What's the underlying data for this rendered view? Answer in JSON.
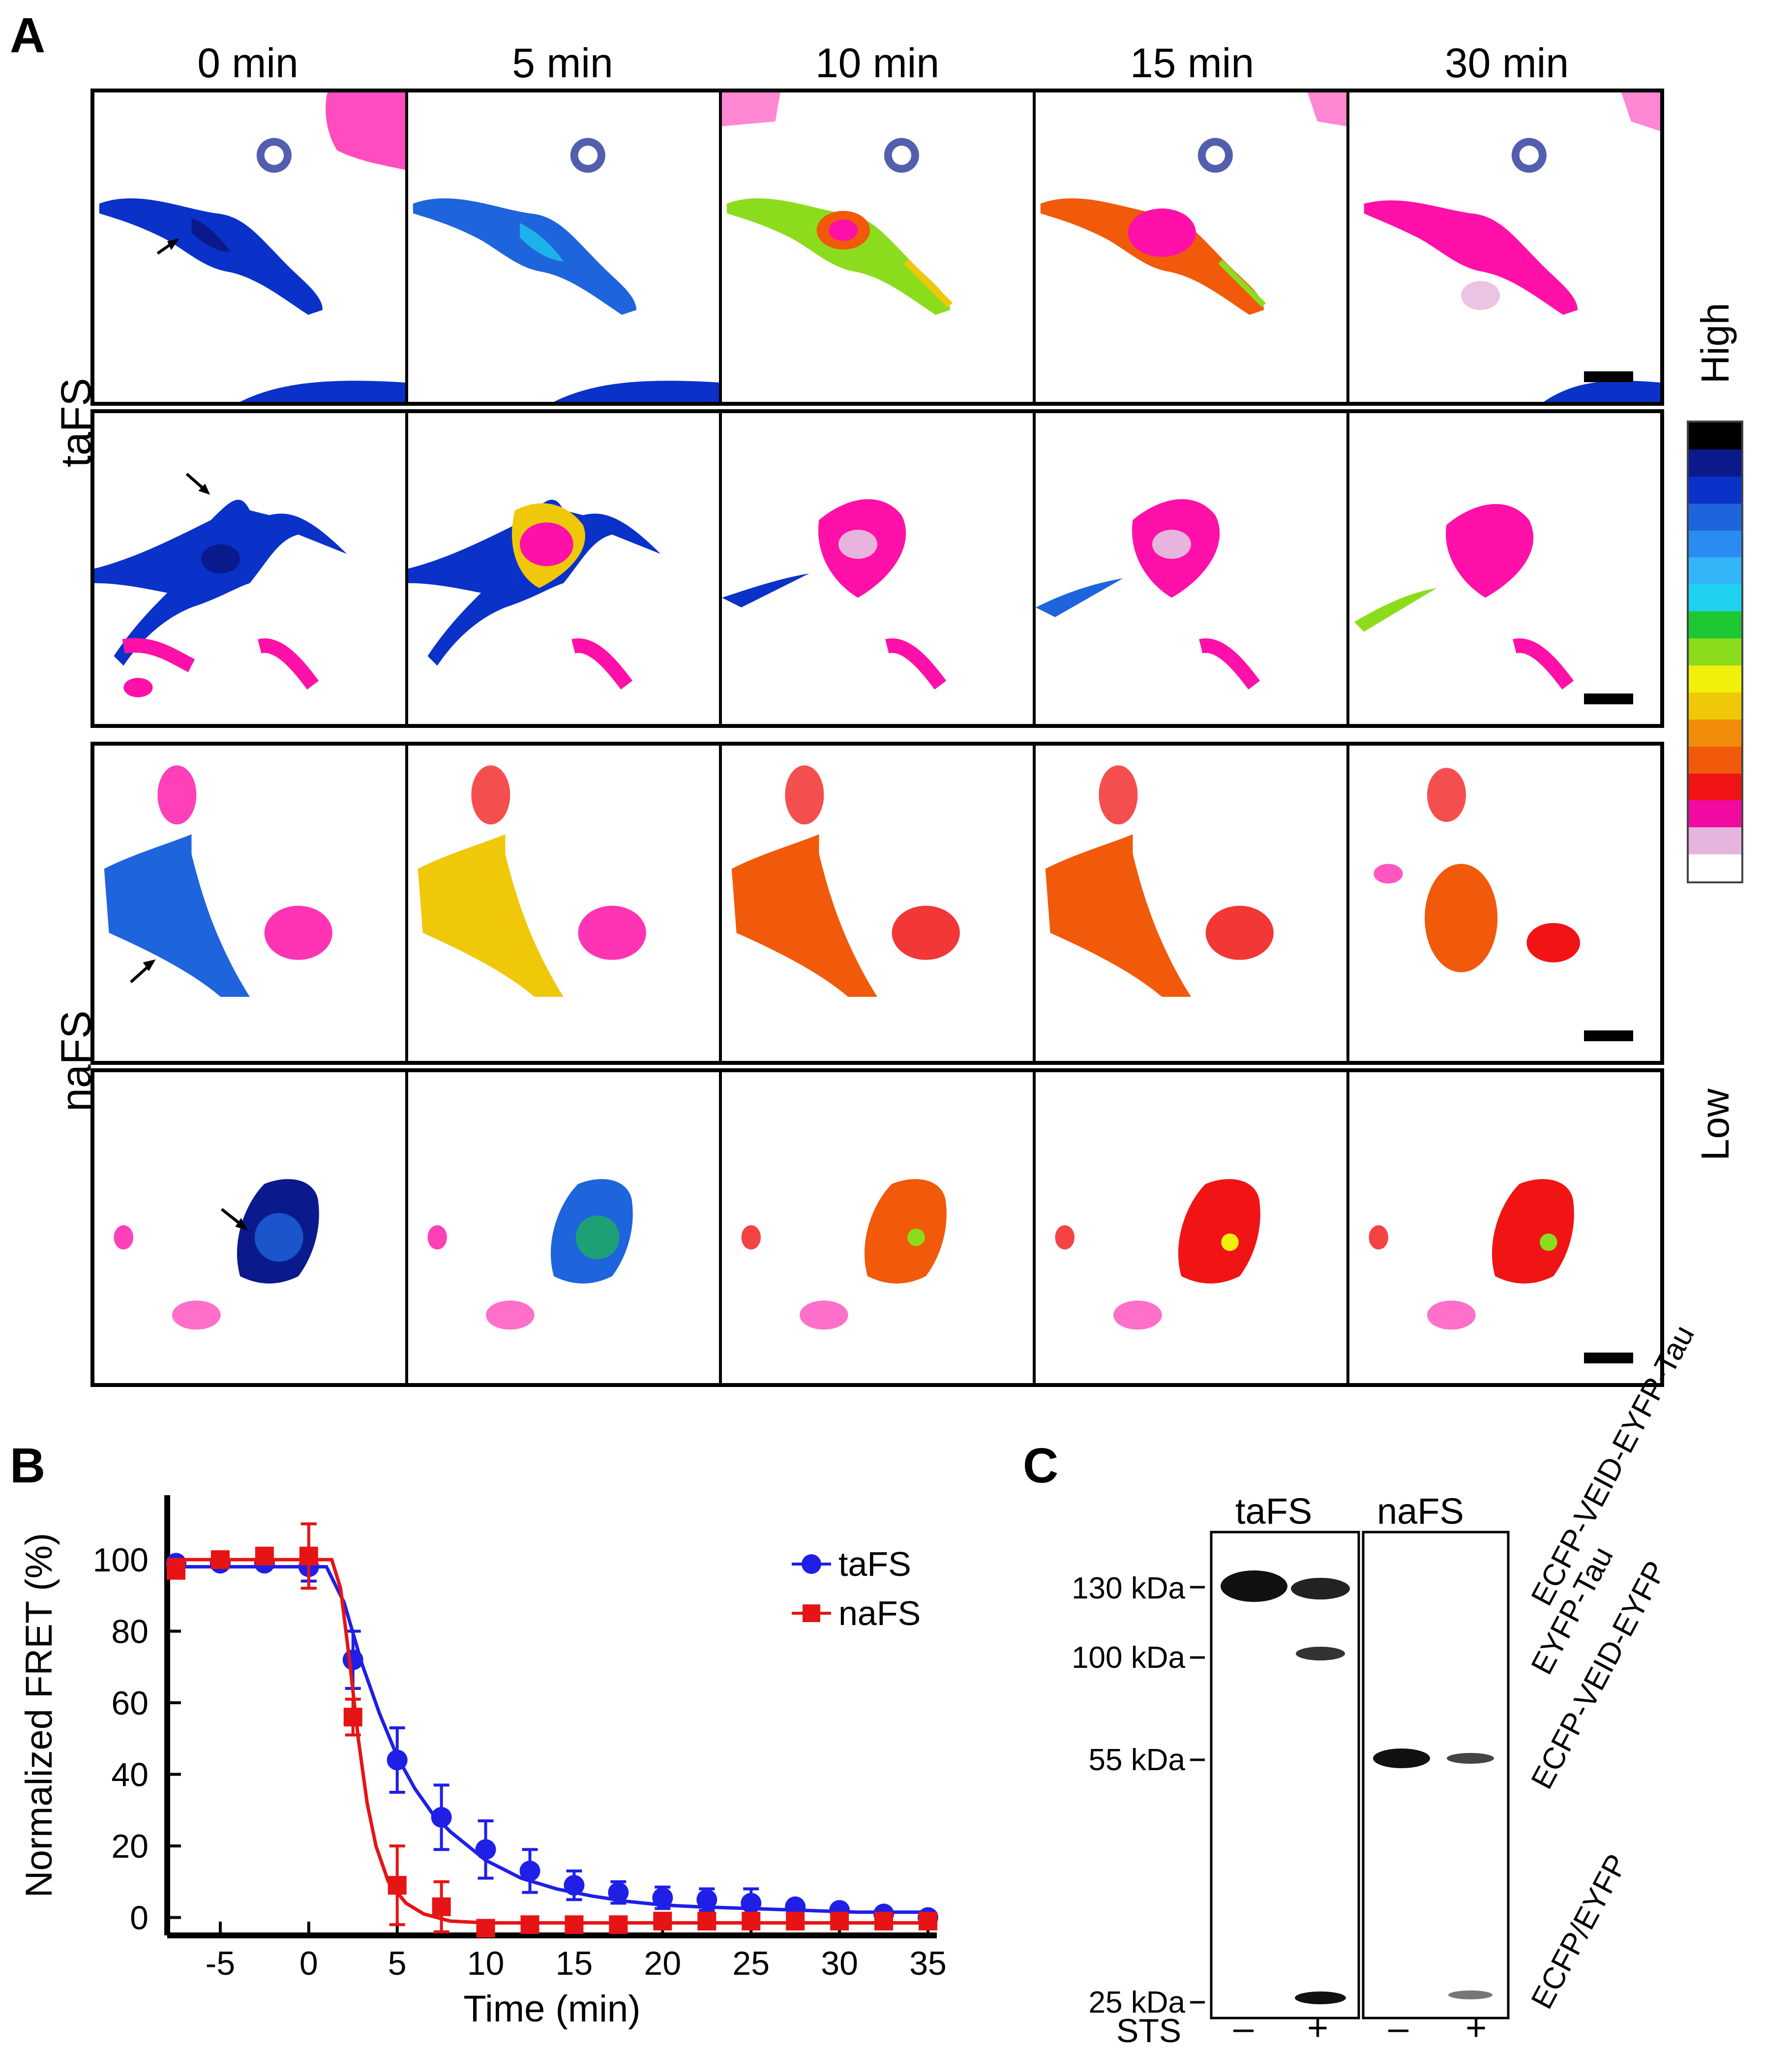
{
  "panel_a": {
    "letter": "A",
    "time_points": [
      "0 min",
      "5 min",
      "10 min",
      "15 min",
      "30 min"
    ],
    "row_groups": [
      "taFS",
      "naFS"
    ],
    "colorbar": {
      "high_label": "High",
      "low_label": "Low",
      "colors": [
        "#000000",
        "#0a1a8c",
        "#0a32c8",
        "#1e64dc",
        "#2a8cf0",
        "#32b4f8",
        "#1ed2f0",
        "#1ec832",
        "#8cdc1e",
        "#f0f00a",
        "#f0c80a",
        "#f08c0a",
        "#f05a0a",
        "#f01414",
        "#f00aa0",
        "#e6b4dc",
        "#ffffff"
      ]
    },
    "colors": {
      "low_fret": "#ff10a8",
      "high_fret": "#0a32c8",
      "arrow": "#000000"
    }
  },
  "panel_b": {
    "letter": "B",
    "chart_data": {
      "type": "line",
      "xlabel": "Time (min)",
      "ylabel": "Normalized FRET (%)",
      "xlim": [
        -8,
        35.5
      ],
      "ylim": [
        -5,
        118
      ],
      "xticks": [
        -5,
        0,
        5,
        10,
        15,
        20,
        25,
        30,
        35
      ],
      "yticks": [
        0,
        20,
        40,
        60,
        80,
        100
      ],
      "legend_position": "top-right",
      "series": [
        {
          "name": "taFS",
          "color": "#1f1fe6",
          "marker": "circle",
          "x": [
            -7.5,
            -5,
            -2.5,
            0,
            2.5,
            5,
            7.5,
            10,
            12.5,
            15,
            17.5,
            20,
            22.5,
            25,
            27.5,
            30,
            32.5,
            35
          ],
          "y": [
            99,
            99,
            99,
            98,
            72,
            44,
            28,
            19,
            13,
            9,
            7,
            5.5,
            5,
            4,
            3,
            2,
            1,
            0
          ],
          "err": [
            0,
            0,
            1,
            4,
            8,
            9,
            9,
            8,
            6,
            4,
            3,
            3,
            3,
            4,
            1,
            1,
            1,
            1
          ],
          "fit_x": [
            -8,
            0,
            1,
            2,
            3,
            4,
            5,
            6,
            7,
            8,
            10,
            12,
            14,
            16,
            18,
            20,
            22,
            25,
            28,
            31,
            35
          ],
          "fit_y": [
            98,
            98,
            98,
            88,
            71,
            57,
            45,
            36,
            29,
            24,
            16,
            11,
            8,
            6,
            4.5,
            3.5,
            3,
            2.5,
            2,
            1.5,
            1.5
          ]
        },
        {
          "name": "naFS",
          "color": "#e61414",
          "marker": "square",
          "x": [
            -7.5,
            -5,
            -2.5,
            0,
            2.5,
            5,
            7.5,
            10,
            12.5,
            15,
            17.5,
            20,
            22.5,
            25,
            27.5,
            30,
            32.5,
            35
          ],
          "y": [
            97,
            100,
            101,
            101,
            56,
            9,
            3,
            -3,
            -2,
            -2,
            -2,
            -1,
            -1,
            -1,
            -1,
            -1,
            -1,
            -1
          ],
          "err": [
            0,
            0,
            1,
            9,
            5,
            11,
            7,
            0,
            0,
            0,
            0,
            0,
            0,
            0,
            0,
            0,
            0,
            0
          ],
          "fit_x": [
            -8,
            0,
            1.3,
            1.8,
            2.3,
            2.8,
            3.3,
            3.8,
            4.5,
            5.5,
            6.5,
            8,
            10,
            15,
            20,
            25,
            30,
            35
          ],
          "fit_y": [
            100,
            100,
            100,
            92,
            72,
            50,
            32,
            20,
            10,
            4,
            1,
            -1,
            -1.5,
            -1.5,
            -1.5,
            -1.5,
            -1.5,
            -1.5
          ]
        }
      ]
    }
  },
  "panel_c": {
    "letter": "C",
    "group_labels": [
      "taFS",
      "naFS"
    ],
    "mw_markers": [
      "130 kDa",
      "100 kDa",
      "55 kDa",
      "25 kDa"
    ],
    "band_labels": [
      "ECFP-VEID-EYFP-Tau",
      "EYFP-Tau",
      "ECFP-VEID-EYFP",
      "ECFP/EYFP"
    ],
    "treatment_label": "STS",
    "lane_signs": [
      "–",
      "+",
      "–",
      "+"
    ]
  }
}
